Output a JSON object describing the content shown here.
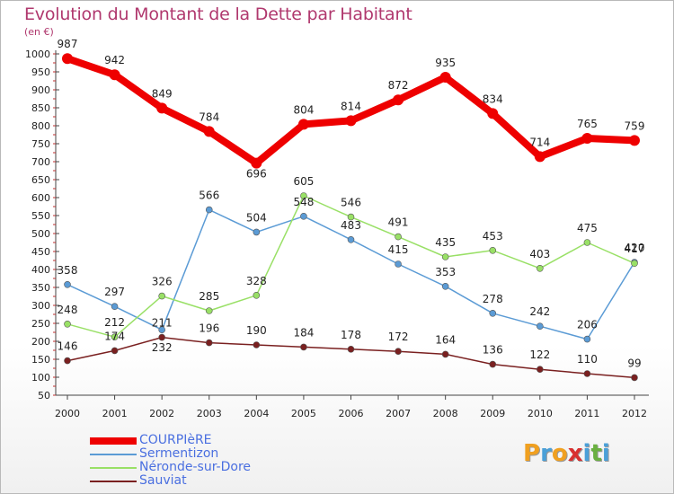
{
  "header": {
    "title": "Evolution du Montant de la Dette par Habitant",
    "unit": "(en €)"
  },
  "logo": {
    "letters": [
      "P",
      "r",
      "o",
      "x",
      "i",
      "t",
      "i"
    ],
    "colors": [
      "#f0a020",
      "#4aa0d8",
      "#f0a020",
      "#d83030",
      "#4aa0d8",
      "#6ab040",
      "#4aa0d8"
    ]
  },
  "chart_data": {
    "type": "line",
    "title": "Evolution du Montant de la Dette par Habitant",
    "ylabel": "(en €)",
    "xlabel": "",
    "ylim": [
      50,
      1000
    ],
    "yticks": [
      50,
      100,
      150,
      200,
      250,
      300,
      350,
      400,
      450,
      500,
      550,
      600,
      650,
      700,
      750,
      800,
      850,
      900,
      950,
      1000
    ],
    "grid": false,
    "legend": "bottom-left",
    "x": [
      "2000",
      "2001",
      "2002",
      "2003",
      "2004",
      "2005",
      "2006",
      "2007",
      "2008",
      "2009",
      "2010",
      "2011",
      "2012"
    ],
    "series": [
      {
        "name": "COURPIèRE",
        "color": "#ee0000",
        "values": [
          987,
          942,
          849,
          784,
          696,
          804,
          814,
          872,
          935,
          834,
          714,
          765,
          759
        ]
      },
      {
        "name": "Sermentizon",
        "color": "#5b9bd5",
        "values": [
          358,
          297,
          232,
          566,
          504,
          548,
          483,
          415,
          353,
          278,
          242,
          206,
          420
        ]
      },
      {
        "name": "Néronde-sur-Dore",
        "color": "#99e066",
        "values": [
          248,
          212,
          326,
          285,
          328,
          605,
          546,
          491,
          435,
          453,
          403,
          475,
          417
        ]
      },
      {
        "name": "Sauviat",
        "color": "#7a2020",
        "values": [
          146,
          174,
          211,
          196,
          190,
          184,
          178,
          172,
          164,
          136,
          122,
          110,
          99
        ]
      }
    ]
  }
}
